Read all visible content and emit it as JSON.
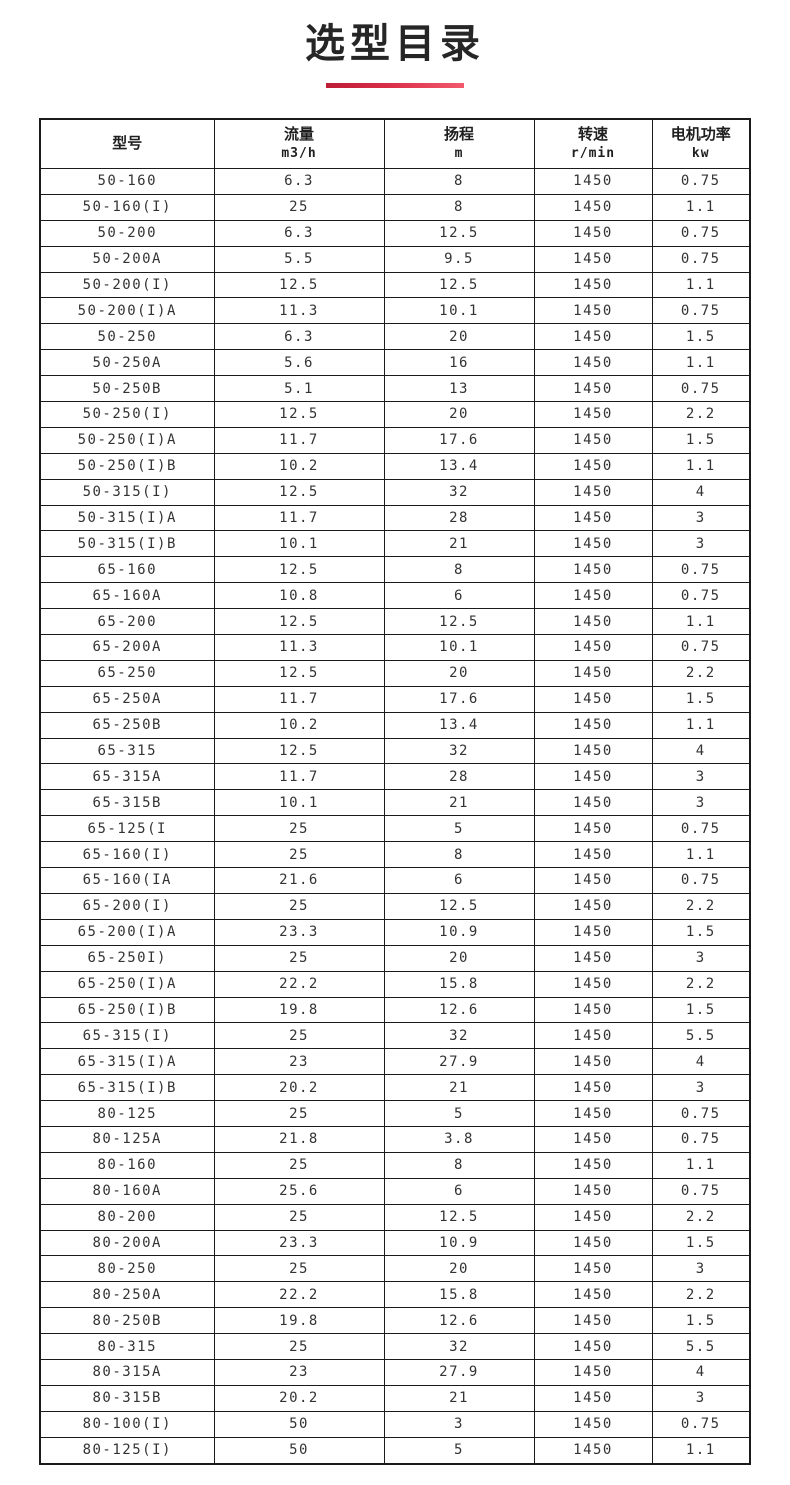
{
  "title": "选型目录",
  "accent": {
    "divider_gradient_start": "#bd1d37",
    "divider_gradient_end": "#f25a6b",
    "border_color": "#1b1b1b",
    "text_color": "#333333"
  },
  "table": {
    "columns": [
      {
        "label": "型号",
        "unit": ""
      },
      {
        "label": "流量",
        "unit": "m3/h"
      },
      {
        "label": "扬程",
        "unit": "m"
      },
      {
        "label": "转速",
        "unit": "r/min"
      },
      {
        "label": "电机功率",
        "unit": "kw"
      }
    ],
    "rows": [
      [
        "50-160",
        "6.3",
        "8",
        "1450",
        "0.75"
      ],
      [
        "50-160(I)",
        "25",
        "8",
        "1450",
        "1.1"
      ],
      [
        "50-200",
        "6.3",
        "12.5",
        "1450",
        "0.75"
      ],
      [
        "50-200A",
        "5.5",
        "9.5",
        "1450",
        "0.75"
      ],
      [
        "50-200(I)",
        "12.5",
        "12.5",
        "1450",
        "1.1"
      ],
      [
        "50-200(I)A",
        "11.3",
        "10.1",
        "1450",
        "0.75"
      ],
      [
        "50-250",
        "6.3",
        "20",
        "1450",
        "1.5"
      ],
      [
        "50-250A",
        "5.6",
        "16",
        "1450",
        "1.1"
      ],
      [
        "50-250B",
        "5.1",
        "13",
        "1450",
        "0.75"
      ],
      [
        "50-250(I)",
        "12.5",
        "20",
        "1450",
        "2.2"
      ],
      [
        "50-250(I)A",
        "11.7",
        "17.6",
        "1450",
        "1.5"
      ],
      [
        "50-250(I)B",
        "10.2",
        "13.4",
        "1450",
        "1.1"
      ],
      [
        "50-315(I)",
        "12.5",
        "32",
        "1450",
        "4"
      ],
      [
        "50-315(I)A",
        "11.7",
        "28",
        "1450",
        "3"
      ],
      [
        "50-315(I)B",
        "10.1",
        "21",
        "1450",
        "3"
      ],
      [
        "65-160",
        "12.5",
        "8",
        "1450",
        "0.75"
      ],
      [
        "65-160A",
        "10.8",
        "6",
        "1450",
        "0.75"
      ],
      [
        "65-200",
        "12.5",
        "12.5",
        "1450",
        "1.1"
      ],
      [
        "65-200A",
        "11.3",
        "10.1",
        "1450",
        "0.75"
      ],
      [
        "65-250",
        "12.5",
        "20",
        "1450",
        "2.2"
      ],
      [
        "65-250A",
        "11.7",
        "17.6",
        "1450",
        "1.5"
      ],
      [
        "65-250B",
        "10.2",
        "13.4",
        "1450",
        "1.1"
      ],
      [
        "65-315",
        "12.5",
        "32",
        "1450",
        "4"
      ],
      [
        "65-315A",
        "11.7",
        "28",
        "1450",
        "3"
      ],
      [
        "65-315B",
        "10.1",
        "21",
        "1450",
        "3"
      ],
      [
        "65-125(I",
        "25",
        "5",
        "1450",
        "0.75"
      ],
      [
        "65-160(I)",
        "25",
        "8",
        "1450",
        "1.1"
      ],
      [
        "65-160(IA",
        "21.6",
        "6",
        "1450",
        "0.75"
      ],
      [
        "65-200(I)",
        "25",
        "12.5",
        "1450",
        "2.2"
      ],
      [
        "65-200(I)A",
        "23.3",
        "10.9",
        "1450",
        "1.5"
      ],
      [
        "65-250I)",
        "25",
        "20",
        "1450",
        "3"
      ],
      [
        "65-250(I)A",
        "22.2",
        "15.8",
        "1450",
        "2.2"
      ],
      [
        "65-250(I)B",
        "19.8",
        "12.6",
        "1450",
        "1.5"
      ],
      [
        "65-315(I)",
        "25",
        "32",
        "1450",
        "5.5"
      ],
      [
        "65-315(I)A",
        "23",
        "27.9",
        "1450",
        "4"
      ],
      [
        "65-315(I)B",
        "20.2",
        "21",
        "1450",
        "3"
      ],
      [
        "80-125",
        "25",
        "5",
        "1450",
        "0.75"
      ],
      [
        "80-125A",
        "21.8",
        "3.8",
        "1450",
        "0.75"
      ],
      [
        "80-160",
        "25",
        "8",
        "1450",
        "1.1"
      ],
      [
        "80-160A",
        "25.6",
        "6",
        "1450",
        "0.75"
      ],
      [
        "80-200",
        "25",
        "12.5",
        "1450",
        "2.2"
      ],
      [
        "80-200A",
        "23.3",
        "10.9",
        "1450",
        "1.5"
      ],
      [
        "80-250",
        "25",
        "20",
        "1450",
        "3"
      ],
      [
        "80-250A",
        "22.2",
        "15.8",
        "1450",
        "2.2"
      ],
      [
        "80-250B",
        "19.8",
        "12.6",
        "1450",
        "1.5"
      ],
      [
        "80-315",
        "25",
        "32",
        "1450",
        "5.5"
      ],
      [
        "80-315A",
        "23",
        "27.9",
        "1450",
        "4"
      ],
      [
        "80-315B",
        "20.2",
        "21",
        "1450",
        "3"
      ],
      [
        "80-100(I)",
        "50",
        "3",
        "1450",
        "0.75"
      ],
      [
        "80-125(I)",
        "50",
        "5",
        "1450",
        "1.1"
      ]
    ]
  }
}
